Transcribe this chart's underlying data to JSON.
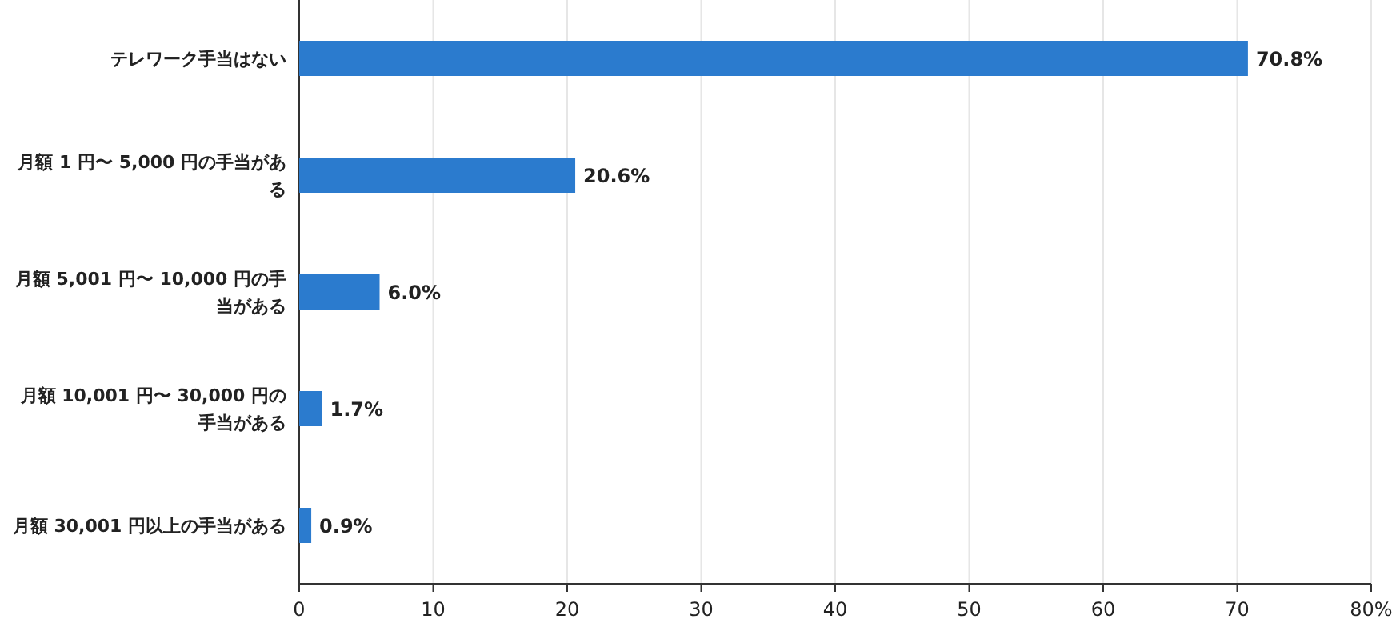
{
  "chart_data": {
    "type": "bar",
    "orientation": "horizontal",
    "categories": [
      "テレワーク手当はない",
      "月額 1 円〜 5,000 円の手当がある",
      "月額 5,001 円〜 10,000 円の手当がある",
      "月額 10,001 円〜 30,000 円の手当がある",
      "月額 30,001 円以上の手当がある"
    ],
    "values": [
      70.8,
      20.6,
      6.0,
      1.7,
      0.9
    ],
    "value_labels": [
      "70.8%",
      "20.6%",
      "6.0%",
      "1.7%",
      "0.9%"
    ],
    "color": "#2b7bce",
    "xlim": [
      0,
      80
    ],
    "xticks": [
      0,
      10,
      20,
      30,
      40,
      50,
      60,
      70,
      {
        "value": 80,
        "label": "80%"
      }
    ],
    "grid": "x"
  }
}
